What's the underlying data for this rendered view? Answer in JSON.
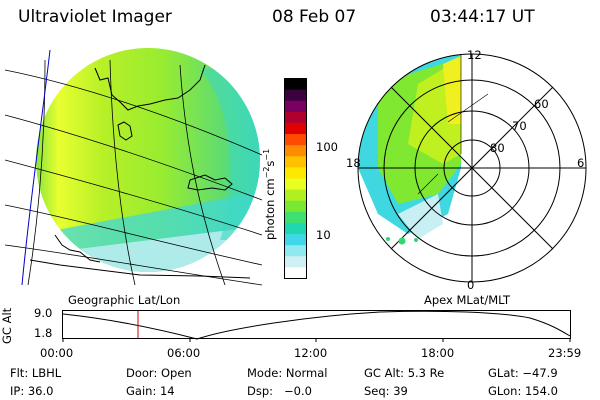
{
  "header": {
    "instrument": "Ultraviolet Imager",
    "date": "08 Feb 07",
    "time": "03:44:17 UT"
  },
  "colorbar": {
    "unit_label": "photon cm",
    "unit_sup": "−2",
    "unit_mid": "s",
    "unit_sup2": "−1",
    "tick_100": "100",
    "tick_10": "10",
    "colors": [
      "#000000",
      "#3a0040",
      "#7a0060",
      "#b00030",
      "#e00000",
      "#ff4a00",
      "#ff8c00",
      "#ffc000",
      "#ffe800",
      "#e8ff20",
      "#b0f020",
      "#78e830",
      "#40e070",
      "#20d8b0",
      "#40d8e8",
      "#90e8f0",
      "#d0f0f4",
      "#ffffff"
    ]
  },
  "left_map": {
    "caption": "Geographic Lat/Lon"
  },
  "polar_plot": {
    "caption": "Apex MLat/MLT",
    "mlt_labels": {
      "top": "12",
      "left": "18",
      "right": "6",
      "bottom": "0"
    },
    "lat_labels": [
      "60",
      "70",
      "80"
    ]
  },
  "altitude_strip": {
    "axis_title": "GC Alt",
    "y_max": "9.0",
    "y_min": "1.8",
    "time_ticks": [
      "00:00",
      "06:00",
      "12:00",
      "18:00",
      "23:59"
    ]
  },
  "info": {
    "flt": "Flt: LBHL",
    "door": "Door: Open",
    "mode": "Mode: Normal",
    "gc_alt": "GC Alt: 5.3 Re",
    "glat": "GLat: −47.9",
    "ip": "IP: 36.0",
    "gain": "Gain: 14",
    "dsp": "Dsp:   −0.0",
    "seq": "Seq: 39",
    "glon": "GLon: 154.0"
  }
}
